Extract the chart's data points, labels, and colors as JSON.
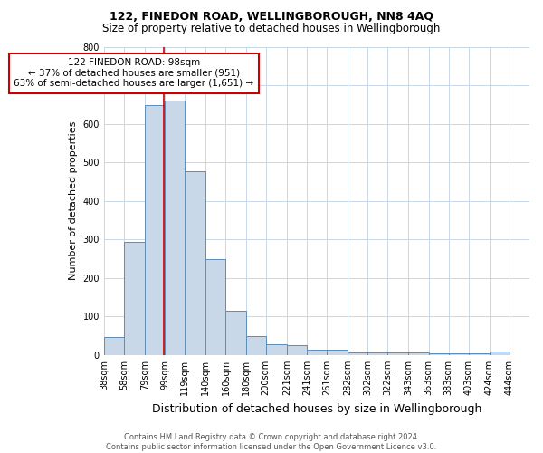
{
  "title1": "122, FINEDON ROAD, WELLINGBOROUGH, NN8 4AQ",
  "title2": "Size of property relative to detached houses in Wellingborough",
  "xlabel": "Distribution of detached houses by size in Wellingborough",
  "ylabel": "Number of detached properties",
  "categories": [
    "38sqm",
    "58sqm",
    "79sqm",
    "99sqm",
    "119sqm",
    "140sqm",
    "160sqm",
    "180sqm",
    "200sqm",
    "221sqm",
    "241sqm",
    "261sqm",
    "282sqm",
    "302sqm",
    "322sqm",
    "343sqm",
    "363sqm",
    "383sqm",
    "403sqm",
    "424sqm",
    "444sqm"
  ],
  "values": [
    46,
    293,
    648,
    660,
    477,
    248,
    115,
    50,
    28,
    26,
    15,
    15,
    7,
    6,
    6,
    7,
    5,
    5,
    5,
    10,
    0
  ],
  "bar_color": "#c8d8e8",
  "bar_edgecolor": "#5b8db8",
  "bin_edges": [
    38,
    58,
    79,
    99,
    119,
    140,
    160,
    180,
    200,
    221,
    241,
    261,
    282,
    302,
    322,
    343,
    363,
    383,
    403,
    424,
    444
  ],
  "property_line_x": 98,
  "red_line_color": "#cc0000",
  "annotation_text": "122 FINEDON ROAD: 98sqm\n← 37% of detached houses are smaller (951)\n63% of semi-detached houses are larger (1,651) →",
  "annotation_box_color": "#ffffff",
  "annotation_box_edgecolor": "#cc0000",
  "ylim": [
    0,
    800
  ],
  "yticks": [
    0,
    100,
    200,
    300,
    400,
    500,
    600,
    700,
    800
  ],
  "footer_line1": "Contains HM Land Registry data © Crown copyright and database right 2024.",
  "footer_line2": "Contains public sector information licensed under the Open Government Licence v3.0.",
  "bg_color": "#ffffff",
  "grid_color": "#c8d8e8",
  "title1_fontsize": 9,
  "title2_fontsize": 8.5,
  "xlabel_fontsize": 9,
  "ylabel_fontsize": 8,
  "tick_fontsize": 7,
  "footer_fontsize": 6,
  "annotation_fontsize": 7.5
}
